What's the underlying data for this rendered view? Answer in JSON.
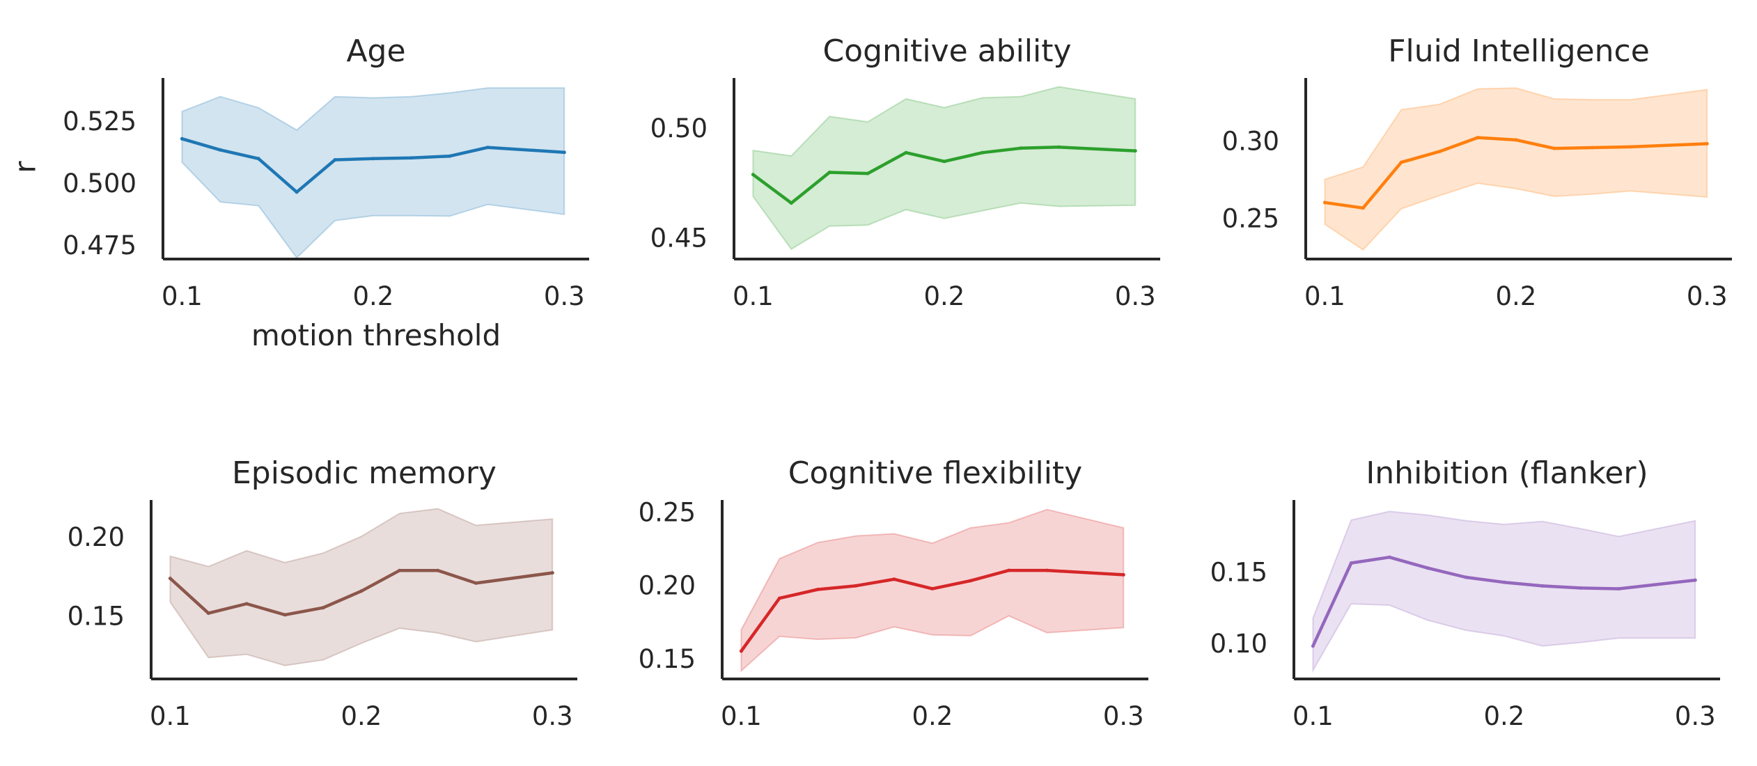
{
  "chart_data": [
    {
      "type": "line",
      "title": "Age",
      "xlabel": "motion threshold",
      "ylabel": "r",
      "xlim": [
        0.09,
        0.313
      ],
      "ylim": [
        0.4695,
        0.5425
      ],
      "xticks": [
        "0.1",
        "0.2",
        "0.3"
      ],
      "yticks": [
        "0.475",
        "0.500",
        "0.525"
      ],
      "x": [
        0.1,
        0.12,
        0.14,
        0.16,
        0.18,
        0.2,
        0.22,
        0.24,
        0.26,
        0.3
      ],
      "series": [
        {
          "values": [
            0.518,
            0.5135,
            0.51,
            0.4965,
            0.5095,
            0.51,
            0.5103,
            0.511,
            0.5145,
            0.5125
          ],
          "ci_low": [
            0.5085,
            0.4925,
            0.491,
            0.47,
            0.485,
            0.487,
            0.487,
            0.4868,
            0.4915,
            0.4875
          ],
          "ci_high": [
            0.529,
            0.535,
            0.5305,
            0.5215,
            0.535,
            0.5345,
            0.535,
            0.5365,
            0.5385,
            0.5385
          ],
          "color": "#1f77b4"
        }
      ],
      "grid": false
    },
    {
      "type": "line",
      "title": "Cognitive ability",
      "xlabel": "",
      "ylabel": "",
      "xlim": [
        0.09,
        0.313
      ],
      "ylim": [
        0.4405,
        0.523
      ],
      "xticks": [
        "0.1",
        "0.2",
        "0.3"
      ],
      "yticks": [
        "0.45",
        "0.50"
      ],
      "x": [
        0.1,
        0.12,
        0.14,
        0.16,
        0.18,
        0.2,
        0.22,
        0.24,
        0.26,
        0.3
      ],
      "series": [
        {
          "values": [
            0.479,
            0.466,
            0.48,
            0.4795,
            0.489,
            0.485,
            0.489,
            0.491,
            0.4915,
            0.4898
          ],
          "ci_low": [
            0.469,
            0.445,
            0.4555,
            0.456,
            0.463,
            0.459,
            0.4625,
            0.466,
            0.4645,
            0.465
          ],
          "ci_high": [
            0.49,
            0.4875,
            0.5055,
            0.503,
            0.5135,
            0.5095,
            0.514,
            0.5145,
            0.519,
            0.5135
          ],
          "color": "#2ca02c"
        }
      ],
      "grid": false
    },
    {
      "type": "line",
      "title": "Fluid Intelligence",
      "xlabel": "",
      "ylabel": "",
      "xlim": [
        0.09,
        0.313
      ],
      "ylim": [
        0.224,
        0.341
      ],
      "xticks": [
        "0.1",
        "0.2",
        "0.3"
      ],
      "yticks": [
        "0.25",
        "0.30"
      ],
      "x": [
        0.1,
        0.12,
        0.14,
        0.16,
        0.18,
        0.2,
        0.22,
        0.24,
        0.26,
        0.3
      ],
      "series": [
        {
          "values": [
            0.2605,
            0.257,
            0.2865,
            0.2935,
            0.3025,
            0.301,
            0.2955,
            0.296,
            0.2965,
            0.2985
          ],
          "ci_low": [
            0.2465,
            0.23,
            0.2565,
            0.265,
            0.273,
            0.2695,
            0.2645,
            0.266,
            0.268,
            0.264
          ],
          "ci_high": [
            0.2755,
            0.2835,
            0.3205,
            0.324,
            0.334,
            0.3345,
            0.3275,
            0.327,
            0.327,
            0.3335
          ],
          "color": "#ff7f0e"
        }
      ],
      "grid": false
    },
    {
      "type": "line",
      "title": "Episodic memory",
      "xlabel": "",
      "ylabel": "",
      "xlim": [
        0.09,
        0.313
      ],
      "ylim": [
        0.1105,
        0.2235
      ],
      "xticks": [
        "0.1",
        "0.2",
        "0.3"
      ],
      "yticks": [
        "0.15",
        "0.20"
      ],
      "x": [
        0.1,
        0.12,
        0.14,
        0.16,
        0.18,
        0.2,
        0.22,
        0.24,
        0.26,
        0.3
      ],
      "series": [
        {
          "values": [
            0.174,
            0.152,
            0.158,
            0.151,
            0.1555,
            0.166,
            0.179,
            0.179,
            0.171,
            0.1775
          ],
          "ci_low": [
            0.159,
            0.124,
            0.126,
            0.119,
            0.1225,
            0.133,
            0.1425,
            0.1395,
            0.134,
            0.1415
          ],
          "ci_high": [
            0.188,
            0.1815,
            0.1915,
            0.184,
            0.19,
            0.2005,
            0.215,
            0.218,
            0.2075,
            0.2115
          ],
          "color": "#8c564b"
        }
      ],
      "grid": false
    },
    {
      "type": "line",
      "title": "Cognitive flexibility",
      "xlabel": "",
      "ylabel": "",
      "xlim": [
        0.09,
        0.313
      ],
      "ylim": [
        0.1365,
        0.2585
      ],
      "xticks": [
        "0.1",
        "0.2",
        "0.3"
      ],
      "yticks": [
        "0.15",
        "0.20",
        "0.25"
      ],
      "x": [
        0.1,
        0.12,
        0.14,
        0.16,
        0.18,
        0.2,
        0.22,
        0.24,
        0.26,
        0.3
      ],
      "series": [
        {
          "values": [
            0.1555,
            0.1915,
            0.1975,
            0.2,
            0.2045,
            0.198,
            0.2035,
            0.2105,
            0.2105,
            0.2075
          ],
          "ci_low": [
            0.142,
            0.1655,
            0.1635,
            0.1645,
            0.172,
            0.1665,
            0.166,
            0.1795,
            0.168,
            0.1715
          ],
          "ci_high": [
            0.17,
            0.2185,
            0.2295,
            0.234,
            0.2355,
            0.229,
            0.2395,
            0.243,
            0.252,
            0.2395
          ],
          "color": "#d62728"
        }
      ],
      "grid": false
    },
    {
      "type": "line",
      "title": "Inhibition (flanker)",
      "xlabel": "",
      "ylabel": "",
      "xlim": [
        0.09,
        0.313
      ],
      "ylim": [
        0.0755,
        0.2005
      ],
      "xticks": [
        "0.1",
        "0.2",
        "0.3"
      ],
      "yticks": [
        "0.10",
        "0.15"
      ],
      "x": [
        0.1,
        0.12,
        0.14,
        0.16,
        0.18,
        0.2,
        0.22,
        0.24,
        0.26,
        0.3
      ],
      "series": [
        {
          "values": [
            0.0985,
            0.1565,
            0.1605,
            0.153,
            0.1465,
            0.143,
            0.1405,
            0.139,
            0.1385,
            0.1445
          ],
          "ci_low": [
            0.0815,
            0.128,
            0.127,
            0.1165,
            0.1095,
            0.1055,
            0.0985,
            0.101,
            0.104,
            0.104
          ],
          "ci_high": [
            0.118,
            0.1865,
            0.1925,
            0.19,
            0.186,
            0.1835,
            0.1855,
            0.1805,
            0.175,
            0.186
          ],
          "color": "#9467bd"
        }
      ],
      "grid": false
    }
  ]
}
